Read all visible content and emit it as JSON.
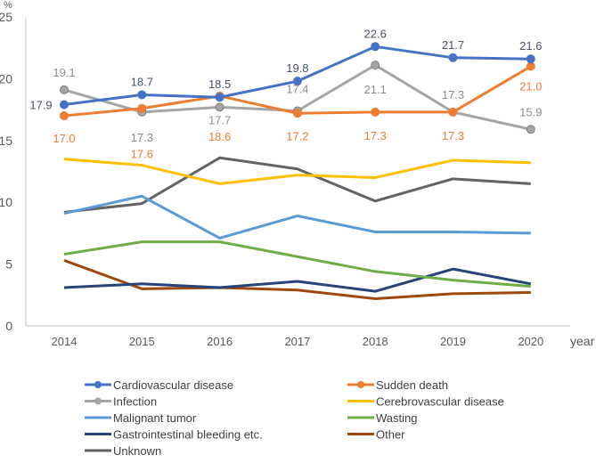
{
  "chart_data": {
    "type": "line",
    "title": "",
    "xlabel": "year",
    "ylabel": "%",
    "ylim": [
      0,
      25
    ],
    "yticks": [
      "0",
      "5",
      "10",
      "15",
      "20",
      "25"
    ],
    "categories": [
      "2014",
      "2015",
      "2016",
      "2017",
      "2018",
      "2019",
      "2020"
    ],
    "grid": false,
    "legend_placement": "bottom",
    "series": [
      {
        "name": "Cardiovascular disease",
        "color": "#4472C4",
        "markers": true,
        "values": [
          17.9,
          18.7,
          18.5,
          19.8,
          22.6,
          21.7,
          21.6
        ],
        "labels": [
          "17.9",
          "18.7",
          "18.5",
          "19.8",
          "22.6",
          "21.7",
          "21.6"
        ]
      },
      {
        "name": "Sudden death",
        "color": "#ED7D31",
        "markers": true,
        "values": [
          17.0,
          17.6,
          18.6,
          17.2,
          17.3,
          17.3,
          21.0
        ],
        "labels": [
          "17.0",
          "17.6",
          "18.6",
          "17.2",
          "17.3",
          "17.3",
          "21.0"
        ]
      },
      {
        "name": "Infection",
        "color": "#A5A5A5",
        "markers": true,
        "values": [
          19.1,
          17.3,
          17.7,
          17.4,
          21.1,
          17.3,
          15.9
        ],
        "labels": [
          "19.1",
          "17.3",
          "17.7",
          "17.4",
          "21.1",
          "17.3",
          "15.9"
        ]
      },
      {
        "name": "Cerebrovascular disease",
        "color": "#FFC000",
        "markers": false,
        "values": [
          13.5,
          13.0,
          11.5,
          12.2,
          12.0,
          13.4,
          13.2
        ]
      },
      {
        "name": "Malignant tumor",
        "color": "#5B9BD5",
        "markers": false,
        "values": [
          9.1,
          10.5,
          7.1,
          8.9,
          7.6,
          7.6,
          7.5
        ]
      },
      {
        "name": "Wasting",
        "color": "#70AD47",
        "markers": false,
        "values": [
          5.8,
          6.8,
          6.8,
          5.6,
          4.4,
          3.7,
          3.2
        ]
      },
      {
        "name": "Gastrointestinal bleeding etc.",
        "color": "#264478",
        "markers": false,
        "values": [
          3.1,
          3.4,
          3.1,
          3.6,
          2.8,
          4.6,
          3.4
        ]
      },
      {
        "name": "Other",
        "color": "#9E480E",
        "markers": false,
        "values": [
          5.3,
          3.0,
          3.1,
          2.9,
          2.2,
          2.6,
          2.7
        ]
      },
      {
        "name": "Unknown",
        "color": "#636363",
        "markers": false,
        "values": [
          9.2,
          9.9,
          13.6,
          12.7,
          10.1,
          11.9,
          11.5
        ]
      }
    ]
  }
}
